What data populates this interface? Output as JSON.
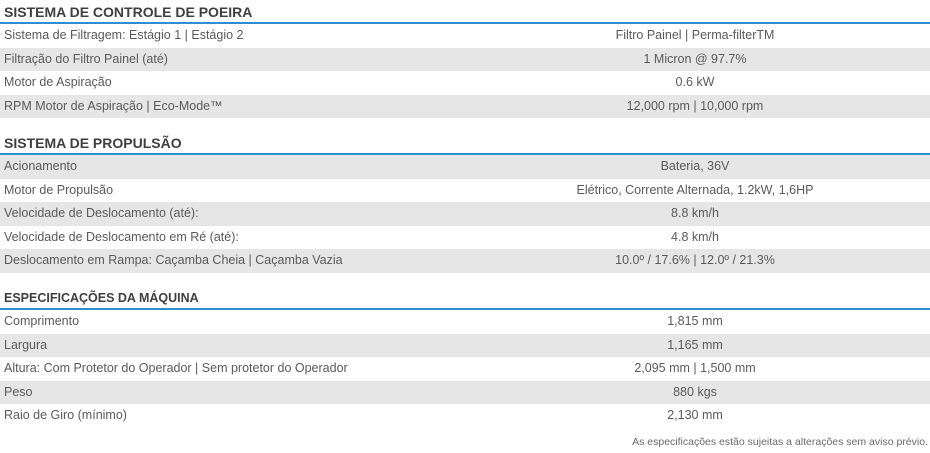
{
  "sections": [
    {
      "title": "SISTEMA DE CONTROLE DE POEIRA",
      "rows": [
        {
          "label": "Sistema de Filtragem: Estágio 1 | Estágio 2",
          "value": "Filtro Painel | Perma-filterTM"
        },
        {
          "label": "Filtração do Filtro Painel (até)",
          "value": "1 Micron @ 97.7%"
        },
        {
          "label": "Motor de Aspiração",
          "value": "0.6 kW"
        },
        {
          "label": "RPM Motor de Aspiração | Eco-Mode™",
          "value": "12,000 rpm | 10,000 rpm"
        }
      ]
    },
    {
      "title": "SISTEMA DE PROPULSÃO",
      "rows": [
        {
          "label": "Acionamento",
          "value": "Bateria, 36V"
        },
        {
          "label": "Motor de Propulsão",
          "value": "Elétrico, Corrente Alternada, 1.2kW, 1,6HP"
        },
        {
          "label": "Velocidade de Deslocamento (até):",
          "value": "8.8 km/h"
        },
        {
          "label": "Velocidade de Deslocamento em Ré (até):",
          "value": "4.8 km/h"
        },
        {
          "label": "Deslocamento em Rampa: Caçamba Cheia | Caçamba Vazia",
          "value": "10.0º / 17.6% | 12.0º / 21.3%"
        }
      ]
    },
    {
      "title": "ESPECIFICAÇÕES DA MÁQUINA",
      "rows": [
        {
          "label": "Comprimento",
          "value": "1,815 mm"
        },
        {
          "label": "Largura",
          "value": "1,165 mm"
        },
        {
          "label": "Altura: Com Protetor do Operador | Sem protetor do Operador",
          "value": "2,095 mm | 1,500 mm"
        },
        {
          "label": "Peso",
          "value": "880 kgs"
        },
        {
          "label": "Raio de Giro (mínimo)",
          "value": "2,130 mm"
        }
      ]
    }
  ],
  "footnote": "As especificações estão sujeitas a alterações sem aviso prévio.",
  "colors": {
    "accent_line": "#2f8fce",
    "row_shade": "#e6e6e6",
    "text": "#5a5a5a",
    "heading": "#3f3f3f"
  }
}
